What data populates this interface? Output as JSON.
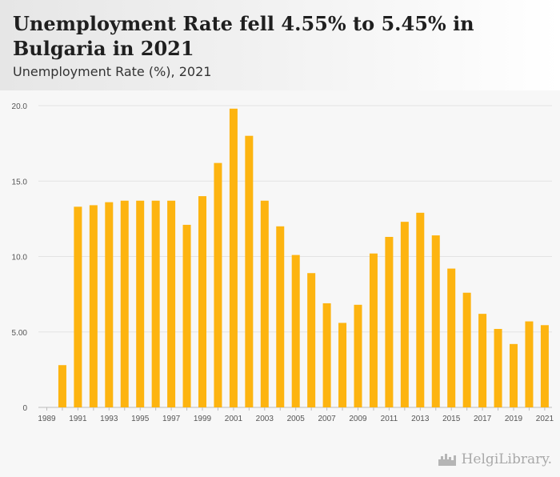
{
  "header": {
    "title": "Unemployment Rate fell 4.55% to 5.45% in Bulgaria in 2021",
    "subtitle": "Unemployment Rate (%), 2021"
  },
  "brand": {
    "name": "HelgiLibrary."
  },
  "colors": {
    "bar": "#FDB410",
    "grid": "#e3e3e3",
    "tick": "#555555",
    "baseline": "#bdbdbd"
  },
  "chart_data": {
    "type": "bar",
    "title": "Unemployment Rate fell 4.55% to 5.45% in Bulgaria in 2021",
    "subtitle": "Unemployment Rate (%), 2021",
    "xlabel": "",
    "ylabel": "",
    "ylim": [
      0,
      20
    ],
    "yticks": [
      0,
      5,
      10,
      15,
      20
    ],
    "ytick_labels": [
      "0",
      "5.00",
      "10.0",
      "15.0",
      "20.0"
    ],
    "grid": true,
    "categories": [
      "1989",
      "1990",
      "1991",
      "1992",
      "1993",
      "1994",
      "1995",
      "1996",
      "1997",
      "1998",
      "1999",
      "2000",
      "2001",
      "2002",
      "2003",
      "2004",
      "2005",
      "2006",
      "2007",
      "2008",
      "2009",
      "2010",
      "2011",
      "2012",
      "2013",
      "2014",
      "2015",
      "2016",
      "2017",
      "2018",
      "2019",
      "2020",
      "2021"
    ],
    "xtick_labels": [
      "1989",
      "1991",
      "1993",
      "1995",
      "1997",
      "1999",
      "2001",
      "2003",
      "2005",
      "2007",
      "2009",
      "2011",
      "2013",
      "2015",
      "2017",
      "2019",
      "2021"
    ],
    "series": [
      {
        "name": "Unemployment Rate (%)",
        "values": [
          null,
          2.8,
          13.3,
          13.4,
          13.6,
          13.7,
          13.7,
          13.7,
          13.7,
          12.1,
          14.0,
          16.2,
          19.8,
          18.0,
          13.7,
          12.0,
          10.1,
          8.9,
          6.9,
          5.6,
          6.8,
          10.2,
          11.3,
          12.3,
          12.9,
          11.4,
          9.2,
          7.6,
          6.2,
          5.2,
          4.2,
          5.7,
          5.45
        ]
      }
    ]
  }
}
